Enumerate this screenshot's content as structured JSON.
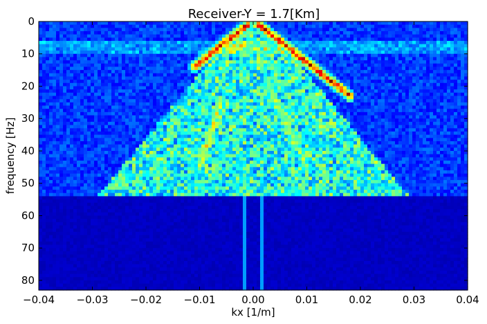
{
  "chart_data": {
    "type": "heatmap",
    "title": "Receiver-Y = 1.7[Km]",
    "xlabel": "kx [1/m]",
    "ylabel": "frequency [Hz]",
    "xlim": [
      -0.04,
      0.04
    ],
    "ylim": [
      0,
      83
    ],
    "y_inverted": true,
    "x_ticks": [
      -0.04,
      -0.03,
      -0.02,
      -0.01,
      0.0,
      0.01,
      0.02,
      0.03,
      0.04
    ],
    "x_tick_labels": [
      "−0.04",
      "−0.03",
      "−0.02",
      "−0.01",
      "0.00",
      "0.01",
      "0.02",
      "0.03",
      "0.04"
    ],
    "y_ticks": [
      0,
      10,
      20,
      30,
      40,
      50,
      60,
      70,
      80
    ],
    "y_tick_labels": [
      "0",
      "10",
      "20",
      "30",
      "40",
      "50",
      "60",
      "70",
      "80"
    ],
    "colormap": "jet",
    "grid": false,
    "features": {
      "background_level": 0.12,
      "high_freq_cutoff_hz": 54,
      "above_cutoff_level": 0.05,
      "low_freq_band_hz": [
        6,
        10
      ],
      "cone_apex_kx": 0.0,
      "cone_half_width_at_50hz": 0.025,
      "strong_events": [
        {
          "kx_start": -0.001,
          "f_start": 1,
          "kx_end": -0.011,
          "f_end": 14,
          "level": 1.0
        },
        {
          "kx_start": 0.001,
          "f_start": 1,
          "kx_end": 0.018,
          "f_end": 23,
          "level": 1.0
        },
        {
          "kx_start": -0.006,
          "f_start": 25,
          "kx_end": -0.01,
          "f_end": 45,
          "level": 0.7
        },
        {
          "kx_start": 0.003,
          "f_start": 20,
          "kx_end": 0.01,
          "f_end": 45,
          "level": 0.6
        }
      ],
      "vertical_lines_kx": [
        -0.0015,
        0.0015
      ]
    }
  }
}
